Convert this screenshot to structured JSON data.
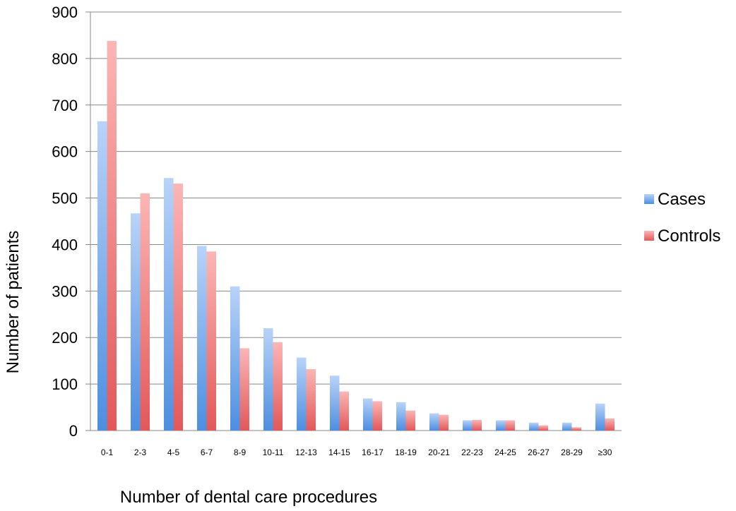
{
  "chart_data": {
    "type": "bar",
    "title": "",
    "xlabel": "Number of dental care procedures",
    "ylabel": "Number of patients",
    "ylim": [
      0,
      900
    ],
    "yticks": [
      0,
      100,
      200,
      300,
      400,
      500,
      600,
      700,
      800,
      900
    ],
    "grid": true,
    "legend_position": "right",
    "categories": [
      "0-1",
      "2-3",
      "4-5",
      "6-7",
      "8-9",
      "10-11",
      "12-13",
      "14-15",
      "16-17",
      "18-19",
      "20-21",
      "22-23",
      "24-25",
      "26-27",
      "28-29",
      "≥30"
    ],
    "series": [
      {
        "name": "Cases",
        "color": "#6FA8EE",
        "values": [
          665,
          467,
          543,
          397,
          310,
          220,
          157,
          118,
          69,
          61,
          37,
          22,
          22,
          17,
          17,
          58
        ]
      },
      {
        "name": "Controls",
        "color": "#F07A78",
        "values": [
          838,
          510,
          531,
          385,
          177,
          190,
          132,
          84,
          63,
          43,
          34,
          23,
          22,
          11,
          7,
          26
        ]
      }
    ]
  }
}
